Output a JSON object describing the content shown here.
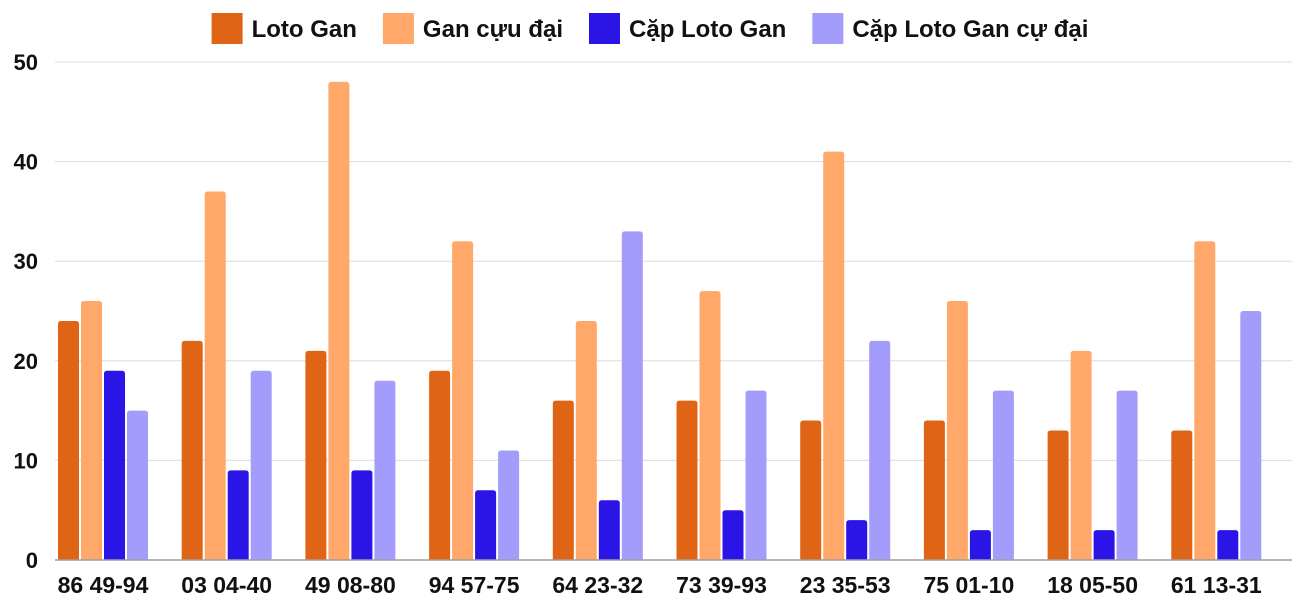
{
  "chart_data": {
    "type": "bar",
    "title": "",
    "xlabel": "",
    "ylabel": "",
    "ylim": [
      0,
      50
    ],
    "yticks": [
      0,
      10,
      20,
      30,
      40,
      50
    ],
    "grid": true,
    "legend_position": "top",
    "categories": [
      "86 49-94",
      "03 04-40",
      "49 08-80",
      "94 57-75",
      "64 23-32",
      "73 39-93",
      "23 35-53",
      "75 01-10",
      "18 05-50",
      "61 13-31"
    ],
    "series": [
      {
        "name": "Loto Gan",
        "color": "#e06416",
        "values": [
          24,
          22,
          21,
          19,
          16,
          16,
          14,
          14,
          13,
          13
        ]
      },
      {
        "name": "Gan cựu đại",
        "color": "#ffa86a",
        "values": [
          26,
          37,
          48,
          32,
          24,
          27,
          41,
          26,
          21,
          32
        ]
      },
      {
        "name": "Cặp Loto Gan",
        "color": "#2a14e6",
        "values": [
          19,
          9,
          9,
          7,
          6,
          5,
          4,
          3,
          3,
          3
        ]
      },
      {
        "name": "Cặp Loto Gan cự đại",
        "color": "#a49cfb",
        "values": [
          15,
          19,
          18,
          11,
          33,
          17,
          22,
          17,
          17,
          25
        ]
      }
    ]
  }
}
